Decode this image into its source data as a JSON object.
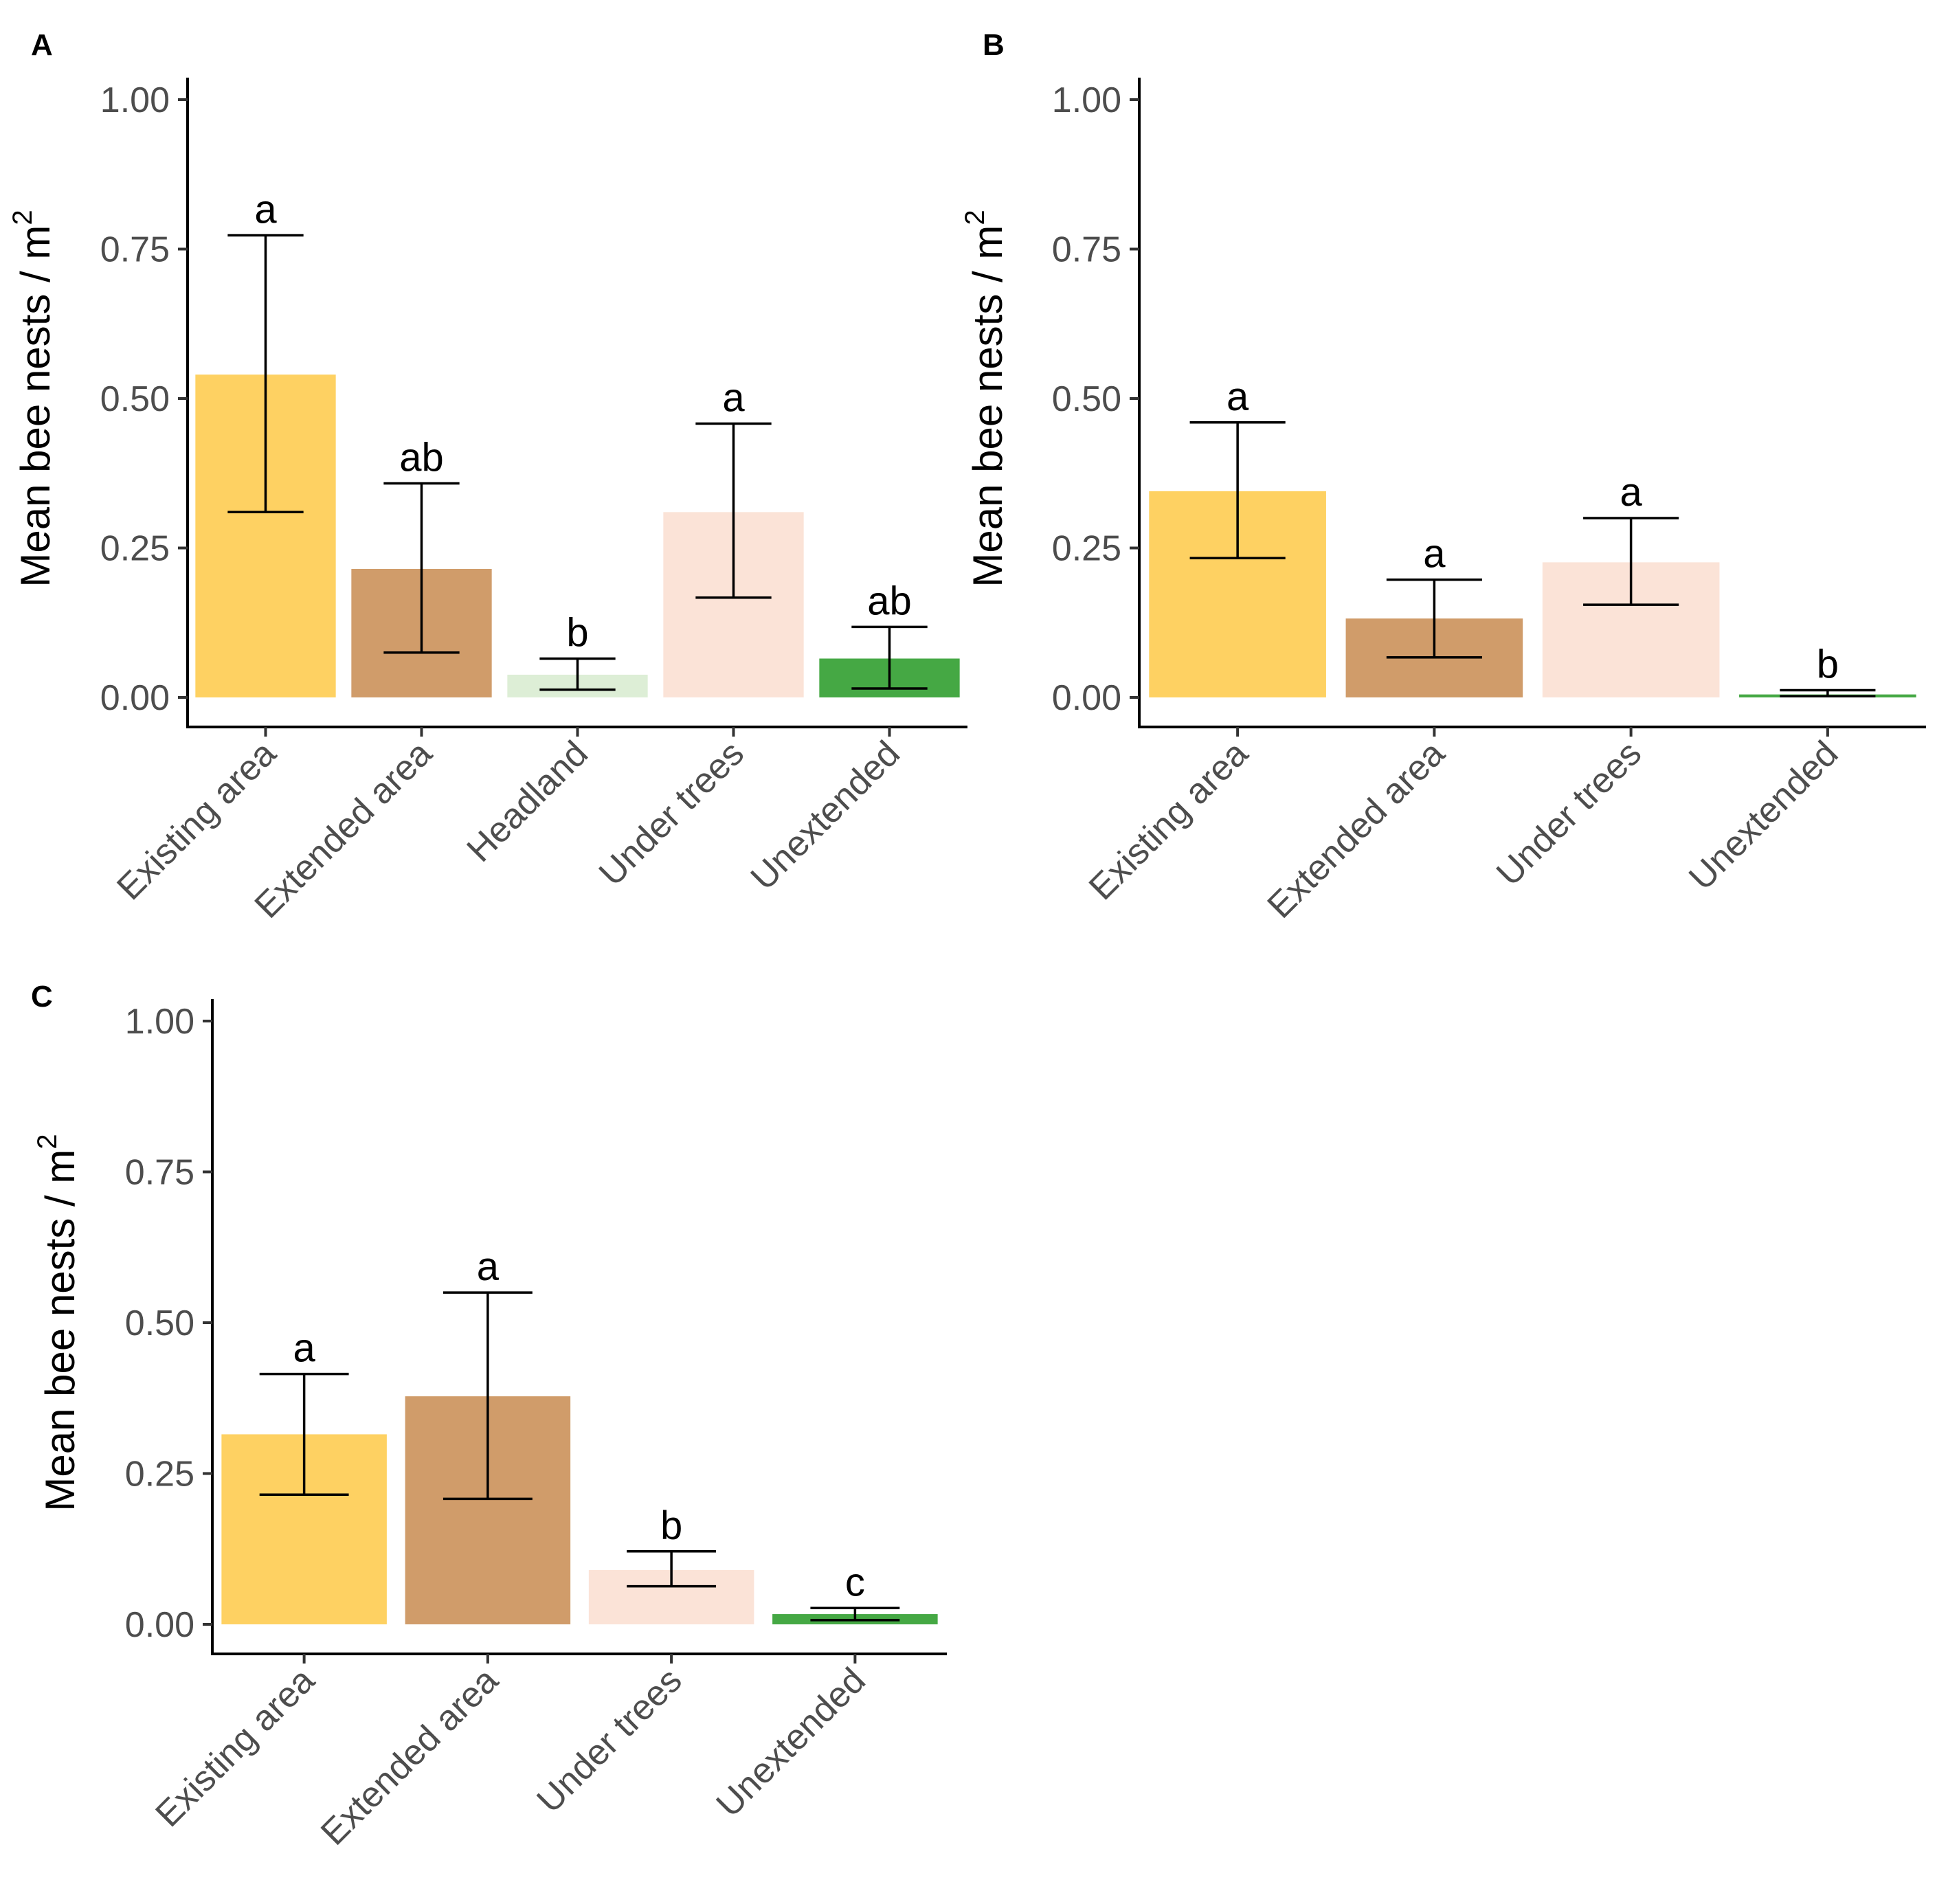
{
  "chart_data": [
    {
      "panel": "A",
      "type": "bar",
      "ylabel": "Mean bee nests / m",
      "ylabel_sup": "2",
      "ylim": [
        0,
        1
      ],
      "yticks": [
        "0.00",
        "0.25",
        "0.50",
        "0.75",
        "1.00"
      ],
      "grid": false,
      "categories": [
        "Existing area",
        "Extended area",
        "Headland",
        "Under trees",
        "Unextended"
      ],
      "values": [
        0.54,
        0.215,
        0.038,
        0.31,
        0.065
      ],
      "error_low": [
        0.31,
        0.075,
        0.013,
        0.167,
        0.015
      ],
      "error_high": [
        0.773,
        0.358,
        0.065,
        0.458,
        0.118
      ],
      "letters": [
        "a",
        "ab",
        "b",
        "a",
        "ab"
      ],
      "colors": [
        "#fed162",
        "#d09c6a",
        "#ddeed6",
        "#fbe3d7",
        "#45a844"
      ]
    },
    {
      "panel": "B",
      "type": "bar",
      "ylabel": "Mean bee nests / m",
      "ylabel_sup": "2",
      "ylim": [
        0,
        1
      ],
      "yticks": [
        "0.00",
        "0.25",
        "0.50",
        "0.75",
        "1.00"
      ],
      "grid": false,
      "categories": [
        "Existing area",
        "Extended area",
        "Under trees",
        "Unextended"
      ],
      "values": [
        0.345,
        0.132,
        0.226,
        0.005
      ],
      "error_low": [
        0.233,
        0.067,
        0.155,
        0.002
      ],
      "error_high": [
        0.46,
        0.197,
        0.3,
        0.012
      ],
      "letters": [
        "a",
        "a",
        "a",
        "b"
      ],
      "colors": [
        "#fed162",
        "#d09c6a",
        "#fbe3d7",
        "#45a844"
      ]
    },
    {
      "panel": "C",
      "type": "bar",
      "ylabel": "Mean bee nests / m",
      "ylabel_sup": "2",
      "ylim": [
        0,
        1
      ],
      "yticks": [
        "0.00",
        "0.25",
        "0.50",
        "0.75",
        "1.00"
      ],
      "grid": false,
      "categories": [
        "Existing area",
        "Extended area",
        "Under trees",
        "Unextended"
      ],
      "values": [
        0.315,
        0.378,
        0.09,
        0.017
      ],
      "error_low": [
        0.215,
        0.208,
        0.063,
        0.007
      ],
      "error_high": [
        0.415,
        0.55,
        0.121,
        0.027
      ],
      "letters": [
        "a",
        "a",
        "b",
        "c"
      ],
      "colors": [
        "#fed162",
        "#d09c6a",
        "#fbe3d7",
        "#45a844"
      ]
    }
  ]
}
